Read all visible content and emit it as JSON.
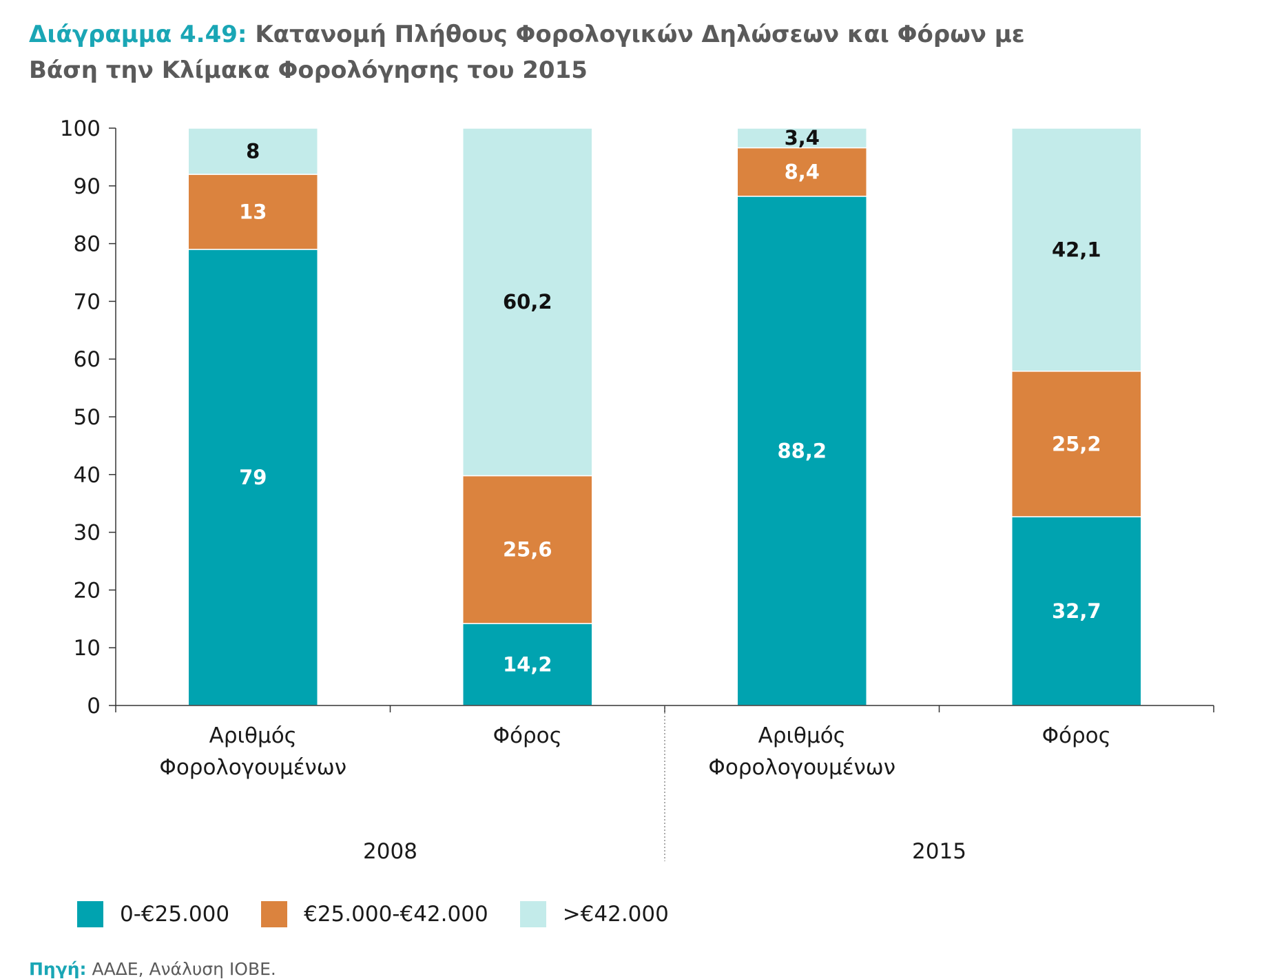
{
  "title": {
    "prefix": "Διάγραμμα 4.49:",
    "line1": " Κατανομή Πλήθους Φορολογικών Δηλώσεων και Φόρων με",
    "line2": "Βάση την Κλίμακα Φορολόγησης του 2015"
  },
  "colors": {
    "low": "#00a3b0",
    "mid": "#db833e",
    "high": "#c3ebea",
    "axis": "#333333"
  },
  "chart_data": {
    "type": "bar",
    "stacked": true,
    "ylim": [
      0,
      100
    ],
    "yticks": [
      "0",
      "10",
      "20",
      "30",
      "40",
      "50",
      "60",
      "70",
      "80",
      "90",
      "100"
    ],
    "categories": [
      {
        "line1": "Αριθμός",
        "line2": "Φορολογουμένων",
        "group": "2008"
      },
      {
        "line1": "Φόρος",
        "line2": "",
        "group": "2008"
      },
      {
        "line1": "Αριθμός",
        "line2": "Φορολογουμένων",
        "group": "2015"
      },
      {
        "line1": "Φόρος",
        "line2": "",
        "group": "2015"
      }
    ],
    "groups": [
      "2008",
      "2015"
    ],
    "series": [
      {
        "name": "0-€25.000",
        "values": [
          79,
          14.2,
          88.2,
          32.7
        ],
        "labels": [
          "79",
          "14,2",
          "88,2",
          "32,7"
        ]
      },
      {
        "name": "€25.000-€42.000",
        "values": [
          13,
          25.6,
          8.4,
          25.2
        ],
        "labels": [
          "13",
          "25,6",
          "8,4",
          "25,2"
        ]
      },
      {
        "name": ">€42.000",
        "values": [
          8,
          60.2,
          3.4,
          42.1
        ],
        "labels": [
          "8",
          "60,2",
          "3,4",
          "42,1"
        ]
      }
    ],
    "legend_position": "bottom-left"
  },
  "source": {
    "label": "Πηγή:",
    "text": " ΑΑΔΕ, Ανάλυση ΙΟΒΕ."
  }
}
